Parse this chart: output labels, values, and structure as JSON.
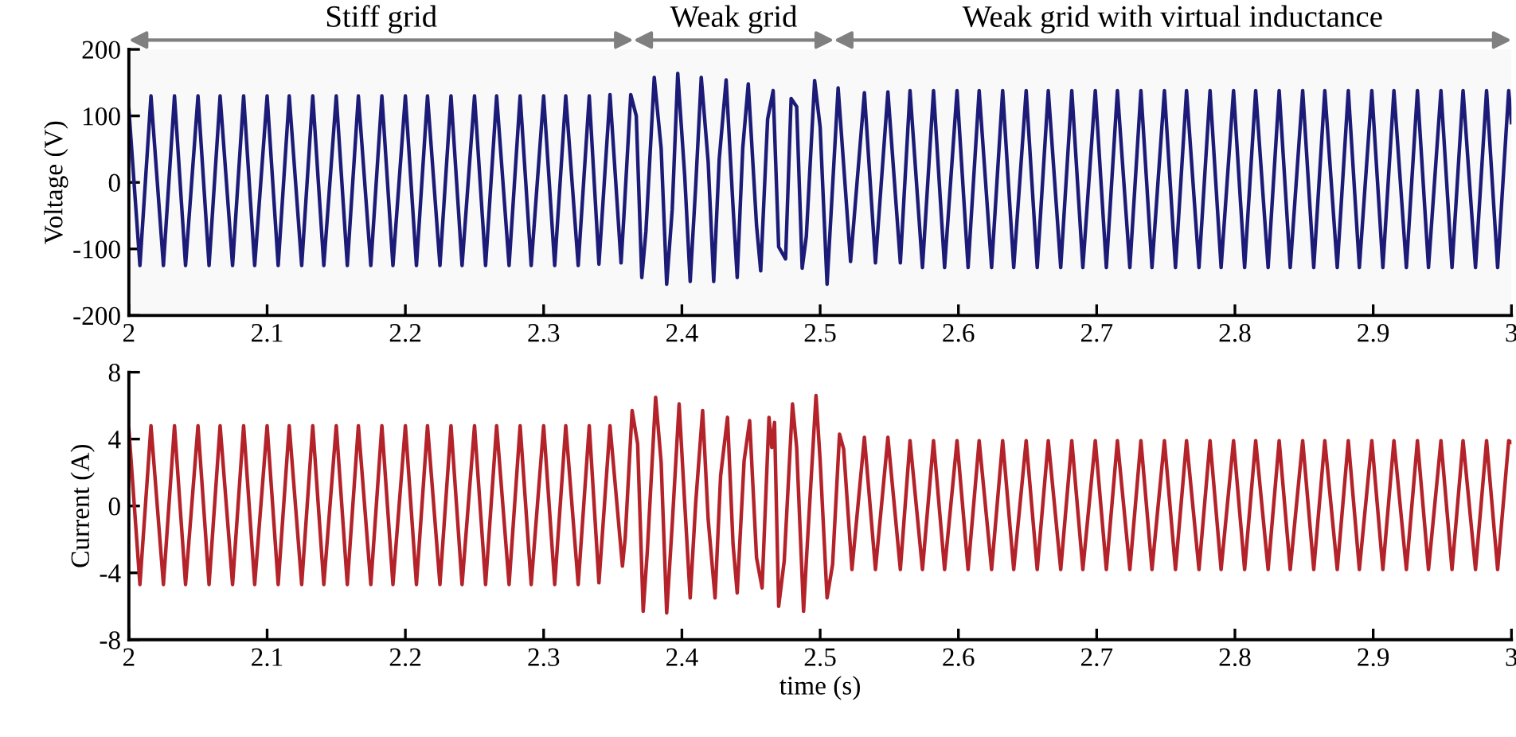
{
  "chart_data": [
    {
      "type": "line",
      "ylabel": "Voltage (V)",
      "xlim": [
        2,
        3
      ],
      "ylim": [
        -200,
        200
      ],
      "xticks": [
        2,
        2.1,
        2.2,
        2.3,
        2.4,
        2.5,
        2.6,
        2.7,
        2.8,
        2.9,
        3
      ],
      "yticks": [
        -200,
        -100,
        0,
        100,
        200
      ],
      "grid": false,
      "bands": [
        {
          "axis": "x",
          "from": 2,
          "to": 2.365,
          "label": "Stiff grid",
          "color": "#808080"
        },
        {
          "axis": "x",
          "from": 2.365,
          "to": 2.51,
          "label": "Weak grid",
          "color": "#808080"
        },
        {
          "axis": "x",
          "from": 2.51,
          "to": 3,
          "label": "Weak grid with virtual inductance",
          "color": "#808080"
        }
      ],
      "series": [
        {
          "color": "#1c1c78",
          "x": [
            2.0,
            2.008,
            2.016,
            2.025,
            2.033,
            2.041,
            2.05,
            2.058,
            2.066,
            2.075,
            2.083,
            2.091,
            2.1,
            2.108,
            2.116,
            2.125,
            2.133,
            2.141,
            2.15,
            2.158,
            2.166,
            2.175,
            2.183,
            2.191,
            2.2,
            2.208,
            2.216,
            2.225,
            2.233,
            2.241,
            2.25,
            2.258,
            2.266,
            2.275,
            2.283,
            2.291,
            2.3,
            2.308,
            2.316,
            2.325,
            2.333,
            2.34,
            2.348,
            2.356,
            2.358,
            2.363,
            2.367,
            2.371,
            2.374,
            2.38,
            2.385,
            2.389,
            2.393,
            2.397,
            2.402,
            2.406,
            2.41,
            2.414,
            2.419,
            2.423,
            2.427,
            2.432,
            2.437,
            2.44,
            2.444,
            2.448,
            2.454,
            2.457,
            2.462,
            2.466,
            2.47,
            2.475,
            2.479,
            2.483,
            2.487,
            2.49,
            2.496,
            2.5,
            2.505,
            2.513,
            2.522,
            2.532,
            2.54,
            2.549,
            2.558,
            2.565,
            2.574,
            2.582,
            2.59,
            2.599,
            2.607,
            2.615,
            2.624,
            2.632,
            2.64,
            2.649,
            2.657,
            2.665,
            2.674,
            2.682,
            2.69,
            2.699,
            2.707,
            2.715,
            2.724,
            2.732,
            2.74,
            2.749,
            2.757,
            2.765,
            2.774,
            2.782,
            2.79,
            2.799,
            2.807,
            2.815,
            2.824,
            2.832,
            2.84,
            2.849,
            2.857,
            2.865,
            2.874,
            2.882,
            2.89,
            2.899,
            2.907,
            2.915,
            2.924,
            2.932,
            2.94,
            2.949,
            2.957,
            2.965,
            2.974,
            2.982,
            2.99,
            2.998,
            3.0
          ],
          "values": [
            110,
            -125,
            130,
            -125,
            130,
            -125,
            130,
            -125,
            130,
            -125,
            130,
            -125,
            130,
            -125,
            130,
            -125,
            130,
            -125,
            130,
            -125,
            130,
            -125,
            130,
            -125,
            130,
            -125,
            130,
            -125,
            130,
            -125,
            130,
            -125,
            130,
            -125,
            130,
            -125,
            130,
            -125,
            130,
            -125,
            130,
            -123,
            132,
            -121,
            -53,
            132,
            100,
            -143,
            -73,
            158,
            51,
            -153,
            -41,
            164,
            11,
            -149,
            -5,
            158,
            31,
            -149,
            35,
            154,
            -37,
            -143,
            51,
            148,
            -65,
            -133,
            95,
            138,
            -97,
            -115,
            126,
            114,
            -129,
            -81,
            153,
            83,
            -153,
            142,
            -119,
            135,
            -121,
            136,
            -121,
            138,
            -128,
            138,
            -128,
            138,
            -128,
            138,
            -128,
            138,
            -128,
            138,
            -128,
            138,
            -128,
            138,
            -128,
            138,
            -128,
            138,
            -128,
            138,
            -128,
            138,
            -128,
            138,
            -128,
            138,
            -128,
            138,
            -128,
            138,
            -128,
            138,
            -128,
            138,
            -128,
            138,
            -128,
            138,
            -128,
            138,
            -128,
            138,
            -128,
            138,
            -128,
            138,
            -128,
            138,
            -128,
            138,
            -128,
            138,
            90
          ]
        }
      ]
    },
    {
      "type": "line",
      "xlabel": "time (s)",
      "ylabel": "Current (A)",
      "xlim": [
        2,
        3
      ],
      "ylim": [
        -8,
        8
      ],
      "xticks": [
        2,
        2.1,
        2.2,
        2.3,
        2.4,
        2.5,
        2.6,
        2.7,
        2.8,
        2.9,
        3
      ],
      "yticks": [
        -8,
        -4,
        0,
        4,
        8
      ],
      "grid": false,
      "series": [
        {
          "color": "#b4222a",
          "x": [
            2.0,
            2.008,
            2.016,
            2.025,
            2.033,
            2.041,
            2.05,
            2.058,
            2.066,
            2.075,
            2.083,
            2.091,
            2.1,
            2.108,
            2.116,
            2.125,
            2.133,
            2.141,
            2.15,
            2.158,
            2.166,
            2.175,
            2.183,
            2.191,
            2.2,
            2.208,
            2.216,
            2.225,
            2.233,
            2.241,
            2.25,
            2.258,
            2.266,
            2.275,
            2.283,
            2.291,
            2.3,
            2.308,
            2.316,
            2.325,
            2.333,
            2.34,
            2.348,
            2.357,
            2.359,
            2.364,
            2.368,
            2.372,
            2.375,
            2.381,
            2.385,
            2.389,
            2.393,
            2.398,
            2.402,
            2.406,
            2.41,
            2.415,
            2.419,
            2.424,
            2.428,
            2.433,
            2.437,
            2.44,
            2.445,
            2.449,
            2.454,
            2.458,
            2.463,
            2.465,
            2.467,
            2.47,
            2.474,
            2.48,
            2.483,
            2.488,
            2.49,
            2.497,
            2.5,
            2.505,
            2.509,
            2.514,
            2.517,
            2.523,
            2.532,
            2.54,
            2.549,
            2.558,
            2.565,
            2.574,
            2.582,
            2.59,
            2.599,
            2.607,
            2.615,
            2.624,
            2.632,
            2.64,
            2.649,
            2.657,
            2.665,
            2.674,
            2.682,
            2.69,
            2.699,
            2.707,
            2.715,
            2.724,
            2.732,
            2.74,
            2.749,
            2.757,
            2.765,
            2.774,
            2.782,
            2.79,
            2.799,
            2.807,
            2.815,
            2.824,
            2.832,
            2.84,
            2.849,
            2.857,
            2.865,
            2.874,
            2.882,
            2.89,
            2.899,
            2.907,
            2.915,
            2.924,
            2.932,
            2.94,
            2.949,
            2.957,
            2.965,
            2.974,
            2.982,
            2.99,
            2.998,
            3.0
          ],
          "values": [
            4.6,
            -4.7,
            4.8,
            -4.7,
            4.8,
            -4.7,
            4.8,
            -4.7,
            4.8,
            -4.7,
            4.8,
            -4.7,
            4.8,
            -4.7,
            4.8,
            -4.7,
            4.8,
            -4.7,
            4.8,
            -4.7,
            4.8,
            -4.7,
            4.8,
            -4.7,
            4.8,
            -4.7,
            4.8,
            -4.7,
            4.8,
            -4.7,
            4.8,
            -4.7,
            4.8,
            -4.7,
            4.8,
            -4.7,
            4.8,
            -4.7,
            4.8,
            -4.7,
            4.8,
            -4.6,
            4.8,
            -3.6,
            -1.9,
            5.7,
            3.7,
            -6.3,
            -2.7,
            6.5,
            2.6,
            -6.4,
            -1.1,
            6.1,
            0.2,
            -5.5,
            0.2,
            5.7,
            -0.8,
            -5.5,
            1.8,
            5.3,
            -2.3,
            -5.2,
            2.7,
            5.1,
            -3.1,
            -4.9,
            5.3,
            3.5,
            5.0,
            -6.0,
            -3.3,
            6.1,
            3.5,
            -6.3,
            -3.3,
            6.6,
            2.7,
            -5.5,
            -3.5,
            4.3,
            3.4,
            -3.8,
            4.1,
            -3.8,
            4.1,
            -3.8,
            3.9,
            -3.8,
            3.9,
            -3.8,
            3.9,
            -3.8,
            3.9,
            -3.8,
            3.9,
            -3.8,
            3.9,
            -3.8,
            3.9,
            -3.8,
            3.9,
            -3.8,
            3.9,
            -3.8,
            3.9,
            -3.8,
            3.9,
            -3.8,
            3.9,
            -3.8,
            3.9,
            -3.8,
            3.9,
            -3.8,
            3.9,
            -3.8,
            3.9,
            -3.8,
            3.9,
            -3.8,
            3.9,
            -3.8,
            3.9,
            -3.8,
            3.9,
            -3.8,
            3.9,
            -3.8,
            3.9,
            -3.8,
            3.9,
            -3.8,
            3.9,
            -3.8,
            3.9,
            -3.8,
            3.9,
            -3.8,
            3.9,
            3.8
          ]
        }
      ]
    }
  ]
}
